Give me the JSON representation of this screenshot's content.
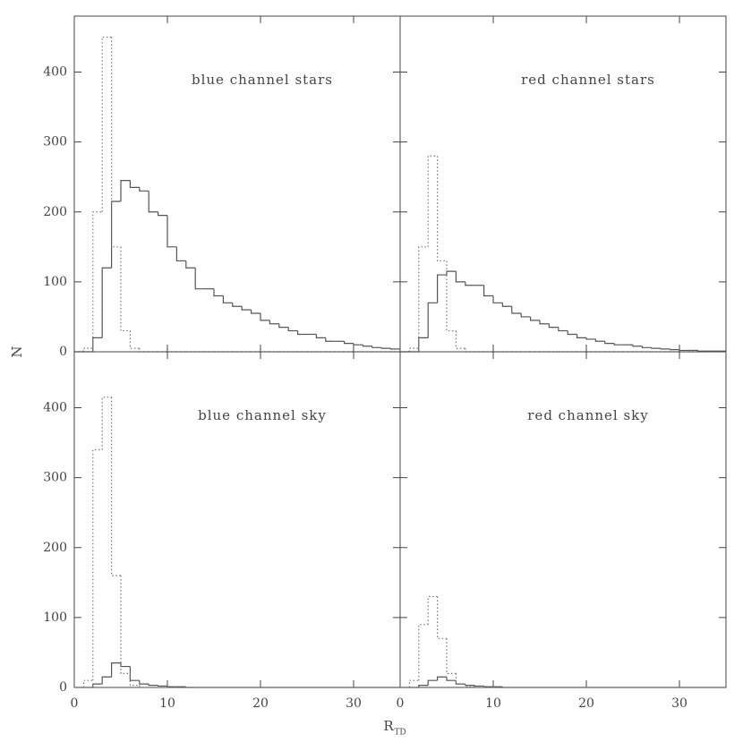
{
  "shared": {
    "ylabel": "N",
    "xlabel": "R",
    "xlabel_sub": "TD"
  },
  "chart_data": [
    {
      "type": "histogram",
      "title": "blue channel stars",
      "bins": [
        0,
        1,
        2,
        3,
        4,
        5,
        6,
        7,
        8,
        9,
        10,
        11,
        12,
        13,
        14,
        15,
        16,
        17,
        18,
        19,
        20,
        21,
        22,
        23,
        24,
        25,
        26,
        27,
        28,
        29,
        30,
        31,
        32,
        33,
        34,
        35
      ],
      "series": [
        {
          "color": "#555555",
          "dashed": false,
          "values": [
            0,
            0,
            20,
            120,
            215,
            245,
            235,
            230,
            200,
            195,
            150,
            130,
            120,
            90,
            90,
            80,
            70,
            65,
            60,
            55,
            45,
            40,
            35,
            30,
            25,
            25,
            20,
            15,
            15,
            12,
            10,
            8,
            6,
            5,
            4
          ]
        },
        {
          "color": "#777777",
          "dashed": true,
          "values": [
            0,
            5,
            200,
            450,
            150,
            30,
            5,
            0,
            0,
            0,
            0,
            0,
            0,
            0,
            0,
            0,
            0,
            0,
            0,
            0,
            0,
            0,
            0,
            0,
            0,
            0,
            0,
            0,
            0,
            0,
            0,
            0,
            0,
            0,
            0
          ]
        }
      ],
      "xlim": [
        0,
        35
      ],
      "ylim": [
        0,
        480
      ],
      "xticks": [
        0,
        10,
        20,
        30
      ],
      "yticks": [
        0,
        100,
        200,
        300,
        400
      ]
    },
    {
      "type": "histogram",
      "title": "red channel stars",
      "bins": [
        0,
        1,
        2,
        3,
        4,
        5,
        6,
        7,
        8,
        9,
        10,
        11,
        12,
        13,
        14,
        15,
        16,
        17,
        18,
        19,
        20,
        21,
        22,
        23,
        24,
        25,
        26,
        27,
        28,
        29,
        30,
        31,
        32,
        33,
        34,
        35
      ],
      "series": [
        {
          "color": "#555555",
          "dashed": false,
          "values": [
            0,
            0,
            20,
            70,
            110,
            115,
            100,
            95,
            95,
            80,
            70,
            65,
            55,
            50,
            45,
            40,
            35,
            30,
            25,
            20,
            18,
            15,
            12,
            10,
            10,
            8,
            6,
            5,
            4,
            3,
            2,
            2,
            1,
            1,
            1
          ]
        },
        {
          "color": "#777777",
          "dashed": true,
          "values": [
            0,
            5,
            150,
            280,
            130,
            30,
            5,
            0,
            0,
            0,
            0,
            0,
            0,
            0,
            0,
            0,
            0,
            0,
            0,
            0,
            0,
            0,
            0,
            0,
            0,
            0,
            0,
            0,
            0,
            0,
            0,
            0,
            0,
            0,
            0
          ]
        }
      ],
      "xlim": [
        0,
        35
      ],
      "ylim": [
        0,
        480
      ],
      "xticks": [
        0,
        10,
        20,
        30
      ],
      "yticks": [
        0,
        100,
        200,
        300,
        400
      ]
    },
    {
      "type": "histogram",
      "title": "blue channel sky",
      "bins": [
        0,
        1,
        2,
        3,
        4,
        5,
        6,
        7,
        8,
        9,
        10,
        11,
        12,
        13,
        14,
        15,
        16,
        17,
        18,
        19,
        20,
        21,
        22,
        23,
        24,
        25,
        26,
        27,
        28,
        29,
        30,
        31,
        32,
        33,
        34,
        35
      ],
      "series": [
        {
          "color": "#555555",
          "dashed": false,
          "values": [
            0,
            0,
            5,
            15,
            35,
            30,
            10,
            5,
            3,
            2,
            1,
            1,
            0,
            0,
            0,
            0,
            0,
            0,
            0,
            0,
            0,
            0,
            0,
            0,
            0,
            0,
            0,
            0,
            0,
            0,
            0,
            0,
            0,
            0,
            0
          ]
        },
        {
          "color": "#777777",
          "dashed": true,
          "values": [
            0,
            10,
            340,
            415,
            160,
            20,
            3,
            0,
            0,
            0,
            0,
            0,
            0,
            0,
            0,
            0,
            0,
            0,
            0,
            0,
            0,
            0,
            0,
            0,
            0,
            0,
            0,
            0,
            0,
            0,
            0,
            0,
            0,
            0,
            0
          ]
        }
      ],
      "xlim": [
        0,
        35
      ],
      "ylim": [
        0,
        480
      ],
      "xticks": [
        0,
        10,
        20,
        30
      ],
      "yticks": [
        0,
        100,
        200,
        300,
        400
      ]
    },
    {
      "type": "histogram",
      "title": "red channel sky",
      "bins": [
        0,
        1,
        2,
        3,
        4,
        5,
        6,
        7,
        8,
        9,
        10,
        11,
        12,
        13,
        14,
        15,
        16,
        17,
        18,
        19,
        20,
        21,
        22,
        23,
        24,
        25,
        26,
        27,
        28,
        29,
        30,
        31,
        32,
        33,
        34,
        35
      ],
      "series": [
        {
          "color": "#555555",
          "dashed": false,
          "values": [
            0,
            0,
            3,
            10,
            15,
            10,
            5,
            3,
            2,
            1,
            1,
            0,
            0,
            0,
            0,
            0,
            0,
            0,
            0,
            0,
            0,
            0,
            0,
            0,
            0,
            0,
            0,
            0,
            0,
            0,
            0,
            0,
            0,
            0,
            0
          ]
        },
        {
          "color": "#777777",
          "dashed": true,
          "values": [
            0,
            10,
            90,
            130,
            70,
            20,
            5,
            1,
            0,
            0,
            0,
            0,
            0,
            0,
            0,
            0,
            0,
            0,
            0,
            0,
            0,
            0,
            0,
            0,
            0,
            0,
            0,
            0,
            0,
            0,
            0,
            0,
            0,
            0,
            0
          ]
        }
      ],
      "xlim": [
        0,
        35
      ],
      "ylim": [
        0,
        480
      ],
      "xticks": [
        0,
        10,
        20,
        30
      ],
      "yticks": [
        0,
        100,
        200,
        300,
        400
      ]
    }
  ]
}
